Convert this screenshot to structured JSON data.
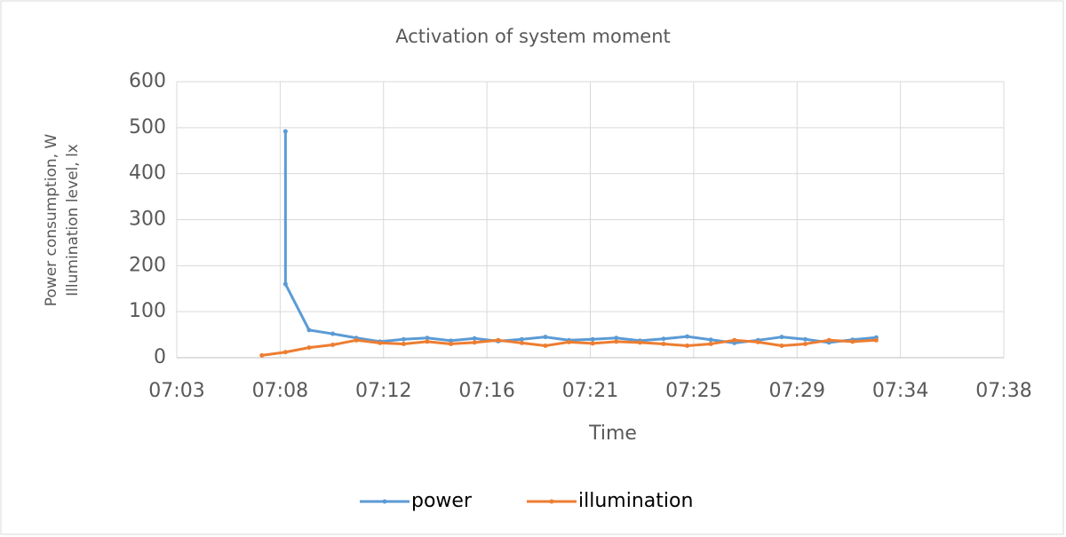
{
  "chart_data": {
    "type": "line",
    "title": "Activation of system moment",
    "ylabel": [
      "Power consumption, W",
      "Illumination level, lx"
    ],
    "xlabel": "Time",
    "xlim": [
      423.7,
      458.7
    ],
    "xticks": [
      {
        "value": 423.7,
        "label": "07:03"
      },
      {
        "value": 428.075,
        "label": "07:08"
      },
      {
        "value": 432.45,
        "label": "07:12"
      },
      {
        "value": 436.825,
        "label": "07:16"
      },
      {
        "value": 441.2,
        "label": "07:21"
      },
      {
        "value": 445.575,
        "label": "07:25"
      },
      {
        "value": 449.95,
        "label": "07:29"
      },
      {
        "value": 454.325,
        "label": "07:34"
      },
      {
        "value": 458.7,
        "label": "07:38"
      }
    ],
    "ylim": [
      0,
      600
    ],
    "yticks": [
      0,
      100,
      200,
      300,
      400,
      500,
      600
    ],
    "grid": true,
    "legend": "bottom",
    "series": [
      {
        "name": "power",
        "color": "#5b9bd5",
        "markers": true,
        "x": [
          428.3,
          428.3,
          429.3,
          430.3,
          431.3,
          432.3,
          433.3,
          434.3,
          435.3,
          436.3,
          437.3,
          438.3,
          439.3,
          440.3,
          441.3,
          442.3,
          443.3,
          444.3,
          445.3,
          446.3,
          447.3,
          448.3,
          449.3,
          450.3,
          451.3,
          452.3,
          453.3
        ],
        "values": [
          492,
          160,
          60,
          52,
          43,
          35,
          40,
          43,
          37,
          42,
          36,
          40,
          45,
          38,
          40,
          43,
          37,
          41,
          46,
          39,
          32,
          38,
          45,
          40,
          33,
          39,
          44
        ]
      },
      {
        "name": "illumination",
        "color": "#ed7d31",
        "markers": true,
        "x": [
          427.3,
          428.3,
          429.3,
          430.3,
          431.3,
          432.3,
          433.3,
          434.3,
          435.3,
          436.3,
          437.3,
          438.3,
          439.3,
          440.3,
          441.3,
          442.3,
          443.3,
          444.3,
          445.3,
          446.3,
          447.3,
          448.3,
          449.3,
          450.3,
          451.3,
          452.3,
          453.3
        ],
        "values": [
          5,
          12,
          22,
          28,
          38,
          32,
          30,
          35,
          30,
          33,
          38,
          32,
          26,
          34,
          31,
          35,
          33,
          30,
          26,
          30,
          38,
          34,
          26,
          30,
          38,
          35,
          38
        ]
      }
    ]
  }
}
